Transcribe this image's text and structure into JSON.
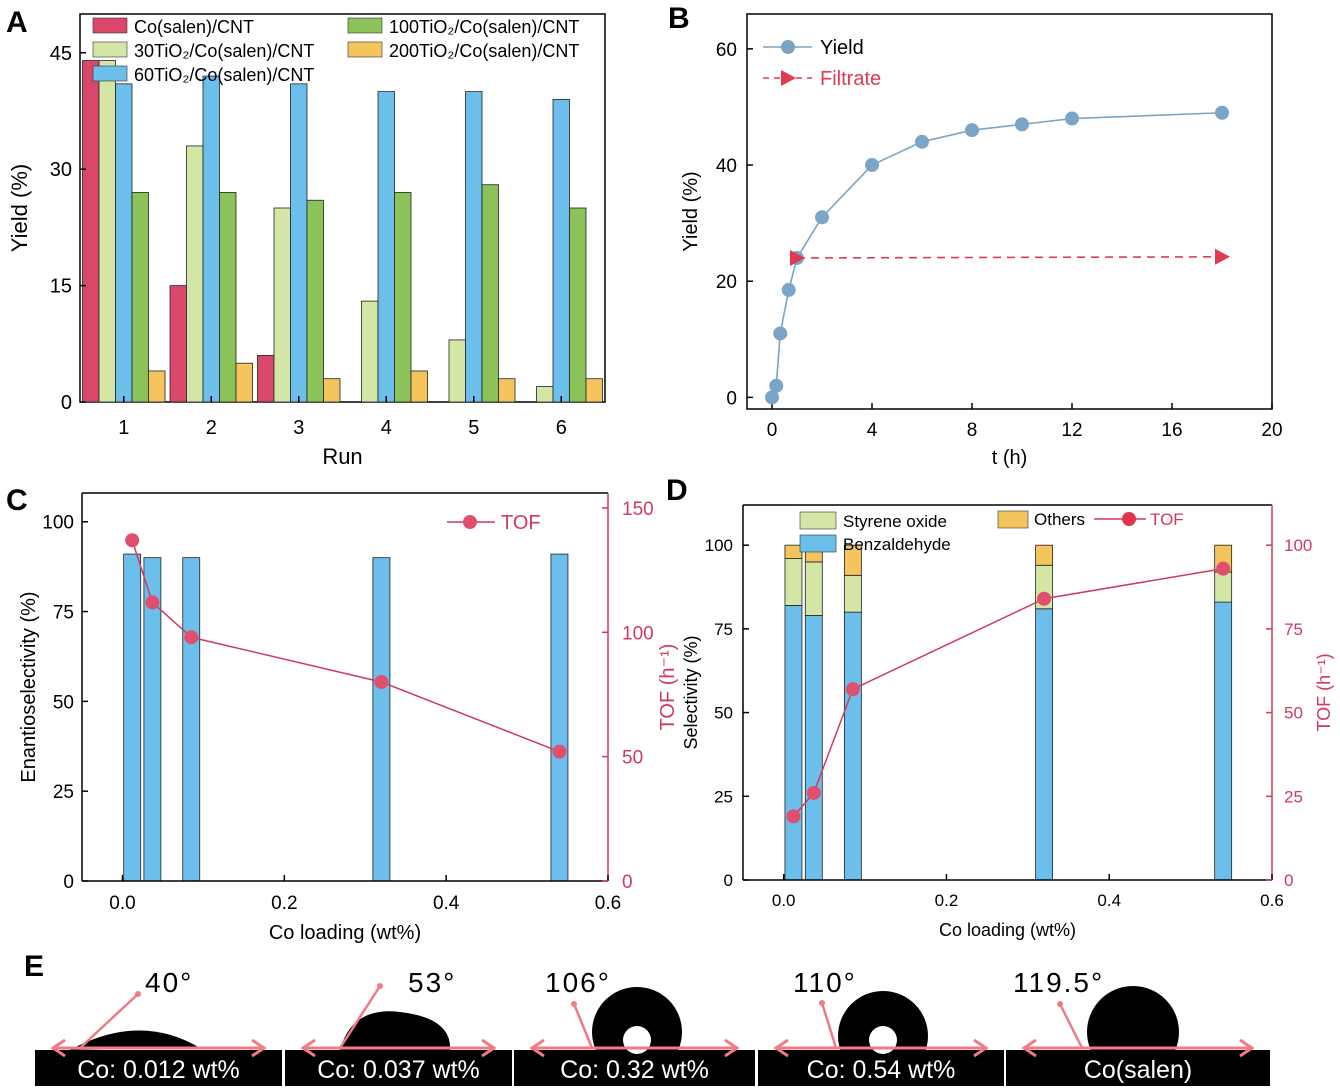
{
  "panels": {
    "A": "A",
    "B": "B",
    "C": "C",
    "D": "D",
    "E": "E"
  },
  "colors": {
    "red": "#d9486a",
    "lightgreen": "#d3e6a6",
    "blue": "#6cbfea",
    "green": "#8cc25a",
    "orange": "#f4c55c",
    "steel": "#7aa5c6",
    "filtrate": "#e23a50",
    "axis_right": "#d23a5c"
  },
  "chart_data": [
    {
      "panel": "A",
      "type": "bar",
      "xlabel": "Run",
      "ylabel": "Yield (%)",
      "ylim": [
        0,
        50
      ],
      "yticks": [
        0,
        15,
        30,
        45
      ],
      "categories": [
        "1",
        "2",
        "3",
        "4",
        "5",
        "6"
      ],
      "legend_position": "top",
      "series": [
        {
          "name": "Co(salen)/CNT",
          "color": "#d9486a",
          "values": [
            44,
            15,
            6,
            0,
            0,
            0
          ]
        },
        {
          "name": "30TiO₂/Co(salen)/CNT",
          "color": "#d3e6a6",
          "values": [
            44,
            33,
            25,
            13,
            8,
            2
          ]
        },
        {
          "name": "60TiO₂/Co(salen)/CNT",
          "color": "#6cbfea",
          "values": [
            41,
            42,
            41,
            40,
            40,
            39
          ]
        },
        {
          "name": "100TiO₂/Co(salen)/CNT",
          "color": "#8cc25a",
          "values": [
            27,
            27,
            26,
            27,
            28,
            25
          ]
        },
        {
          "name": "200TiO₂/Co(salen)/CNT",
          "color": "#f4c55c",
          "values": [
            4,
            5,
            3,
            4,
            3,
            3
          ]
        }
      ]
    },
    {
      "panel": "B",
      "type": "line",
      "xlabel": "t (h)",
      "ylabel": "Yield (%)",
      "xlim": [
        -1,
        20
      ],
      "ylim": [
        -2,
        66
      ],
      "xticks": [
        0,
        4,
        8,
        12,
        16,
        20
      ],
      "yticks": [
        0,
        20,
        40,
        60
      ],
      "legend_position": "top-left",
      "series": [
        {
          "name": "Yield",
          "color": "#7aa5c6",
          "x": [
            0,
            0.17,
            0.33,
            0.67,
            1,
            2,
            4,
            6,
            8,
            10,
            12,
            18
          ],
          "y": [
            0,
            2,
            11,
            18.5,
            24,
            31,
            40,
            44,
            46,
            47,
            48,
            49
          ]
        },
        {
          "name": "Filtrate",
          "color": "#e23a50",
          "x": [
            1,
            18
          ],
          "y": [
            24,
            24.2
          ]
        }
      ]
    },
    {
      "panel": "C",
      "type": "bar",
      "xlabel": "Co loading (wt%)",
      "ylabel": "Enantioselectivity (%)",
      "y2label": "TOF (h⁻¹)",
      "xlim": [
        -0.05,
        0.6
      ],
      "ylim": [
        0,
        108
      ],
      "y2lim": [
        0,
        156
      ],
      "xticks": [
        0.0,
        0.2,
        0.4,
        0.6
      ],
      "yticks": [
        0,
        25,
        50,
        75,
        100
      ],
      "y2ticks": [
        0,
        50,
        100,
        150
      ],
      "legend_position": "top-right",
      "bars": {
        "x": [
          0.012,
          0.037,
          0.085,
          0.32,
          0.54
        ],
        "values": [
          91,
          90,
          90,
          90,
          91
        ]
      },
      "series": [
        {
          "name": "TOF",
          "axis": "right",
          "x": [
            0.012,
            0.037,
            0.085,
            0.32,
            0.54
          ],
          "values": [
            137,
            112,
            98,
            80,
            52
          ]
        }
      ]
    },
    {
      "panel": "D",
      "type": "bar",
      "xlabel": "Co loading (wt%)",
      "ylabel": "Selectivity (%)",
      "y2label": "TOF (h⁻¹)",
      "xlim": [
        -0.05,
        0.6
      ],
      "ylim": [
        0,
        112
      ],
      "y2lim": [
        0,
        112
      ],
      "xticks": [
        0.0,
        0.2,
        0.4,
        0.6
      ],
      "yticks": [
        0,
        25,
        50,
        75,
        100
      ],
      "y2ticks": [
        0,
        25,
        50,
        75,
        100
      ],
      "legend_position": "top",
      "x": [
        0.012,
        0.037,
        0.085,
        0.32,
        0.54
      ],
      "series": [
        {
          "name": "Benzaldehyde",
          "color": "#6cbfea",
          "values": [
            82,
            79,
            80,
            81,
            83
          ]
        },
        {
          "name": "Styrene oxide",
          "color": "#d3e6a6",
          "values": [
            14,
            16,
            11,
            13,
            9
          ]
        },
        {
          "name": "Others",
          "color": "#f4c55c",
          "values": [
            4,
            5,
            9,
            6,
            8
          ]
        },
        {
          "name": "TOF",
          "axis": "right",
          "color": "#e0354c",
          "values": [
            19,
            26,
            57,
            84,
            93
          ]
        }
      ]
    }
  ],
  "contact_angles": [
    {
      "angle": "40°",
      "label": "Co: 0.012 wt%"
    },
    {
      "angle": "53°",
      "label": "Co: 0.037 wt%"
    },
    {
      "angle": "106°",
      "label": "Co: 0.32 wt%"
    },
    {
      "angle": "110°",
      "label": "Co: 0.54 wt%"
    },
    {
      "angle": "119.5°",
      "label": "Co(salen)"
    }
  ]
}
